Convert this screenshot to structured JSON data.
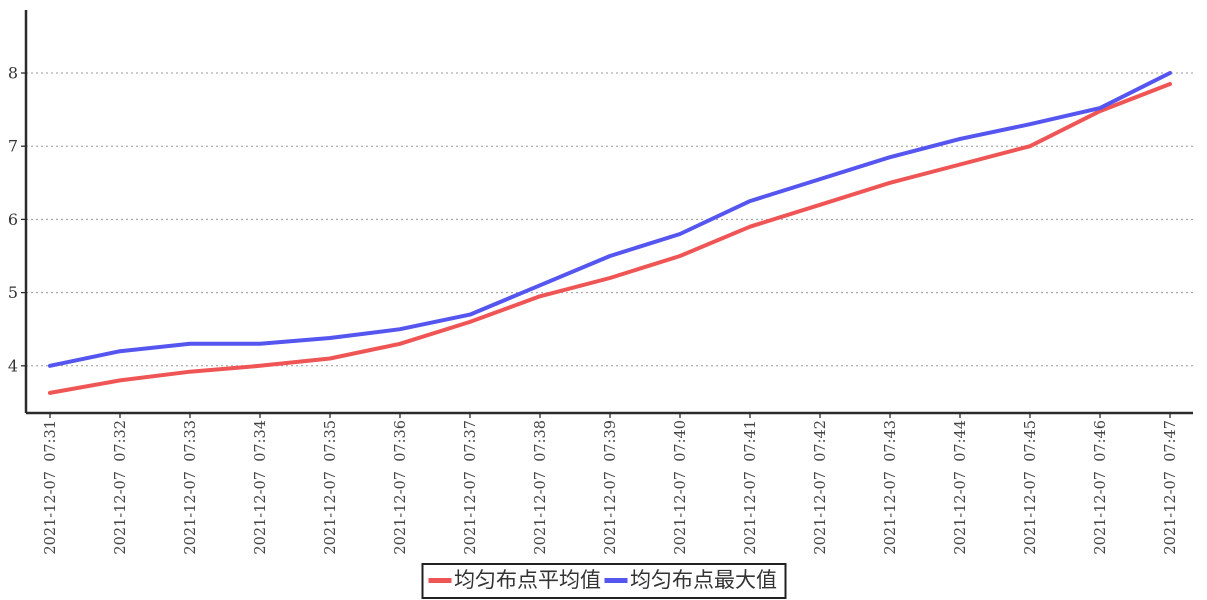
{
  "chart_data": {
    "type": "line",
    "x": [
      "2021-12-07  07:31",
      "2021-12-07  07:32",
      "2021-12-07  07:33",
      "2021-12-07  07:34",
      "2021-12-07  07:35",
      "2021-12-07  07:36",
      "2021-12-07  07:37",
      "2021-12-07  07:38",
      "2021-12-07  07:39",
      "2021-12-07  07:40",
      "2021-12-07  07:41",
      "2021-12-07  07:42",
      "2021-12-07  07:43",
      "2021-12-07  07:44",
      "2021-12-07  07:45",
      "2021-12-07  07:46",
      "2021-12-07  07:47"
    ],
    "series": [
      {
        "name": "均匀布点平均值",
        "color": "#f05555",
        "values": [
          3.63,
          3.8,
          3.92,
          4.0,
          4.1,
          4.3,
          4.6,
          4.95,
          5.2,
          5.5,
          5.9,
          6.2,
          6.5,
          6.75,
          7.0,
          7.48,
          7.85
        ]
      },
      {
        "name": "均匀布点最大值",
        "color": "#5555f0",
        "values": [
          4.0,
          4.2,
          4.3,
          4.3,
          4.38,
          4.5,
          4.7,
          5.1,
          5.5,
          5.8,
          6.25,
          6.55,
          6.85,
          7.1,
          7.3,
          7.52,
          8.0
        ]
      }
    ],
    "title": "",
    "xlabel": "",
    "ylabel": "",
    "y_ticks": [
      4,
      5,
      6,
      7,
      8
    ],
    "ylim": [
      3.35,
      8.86
    ],
    "grid": {
      "horizontal": true,
      "vertical": false,
      "style": "dotted",
      "color": "#999999"
    },
    "legend_position": "bottom-center"
  },
  "colors": {
    "axis": "#2b2b2b",
    "tick_label": "#444444",
    "background": "#ffffff"
  }
}
